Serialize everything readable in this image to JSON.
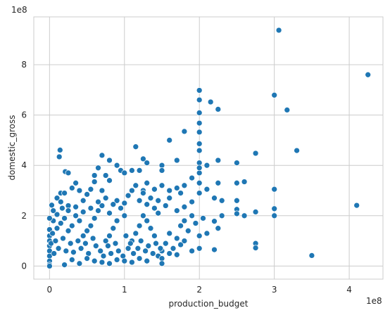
{
  "chart_data": {
    "type": "scatter",
    "title": "",
    "xlabel": "production_budget",
    "ylabel": "domestic_gross",
    "x_exponent_label": "1e8",
    "y_exponent_label": "1e8",
    "xlim": [
      -21000000.0,
      445000000.0
    ],
    "ylim": [
      -52000000.0,
      990000000.0
    ],
    "x_ticks": [
      0,
      100000000.0,
      200000000.0,
      300000000.0,
      400000000.0
    ],
    "x_tick_labels": [
      "0",
      "1",
      "2",
      "3",
      "4"
    ],
    "y_ticks": [
      0,
      200000000.0,
      400000000.0,
      600000000.0,
      800000000.0
    ],
    "y_tick_labels": [
      "0",
      "2",
      "4",
      "6",
      "8"
    ],
    "grid": true,
    "legend": "none",
    "marker_color": "#1f77b4",
    "points": [
      [
        306000000.0,
        937000000.0
      ],
      [
        425000000.0,
        760000000.0
      ],
      [
        200000000.0,
        698000000.0
      ],
      [
        200000000.0,
        660000000.0
      ],
      [
        215000000.0,
        652000000.0
      ],
      [
        225000000.0,
        623000000.0
      ],
      [
        200000000.0,
        609000000.0
      ],
      [
        300000000.0,
        679000000.0
      ],
      [
        317000000.0,
        620000000.0
      ],
      [
        200000000.0,
        568000000.0
      ],
      [
        180000000.0,
        535000000.0
      ],
      [
        200000000.0,
        532000000.0
      ],
      [
        160000000.0,
        500000000.0
      ],
      [
        200000000.0,
        486000000.0
      ],
      [
        115000000.0,
        474000000.0
      ],
      [
        200000000.0,
        459000000.0
      ],
      [
        330000000.0,
        459000000.0
      ],
      [
        275000000.0,
        448000000.0
      ],
      [
        14000000.0,
        461000000.0
      ],
      [
        13000000.0,
        434000000.0
      ],
      [
        70000000.0,
        440000000.0
      ],
      [
        80000000.0,
        420000000.0
      ],
      [
        90000000.0,
        400000000.0
      ],
      [
        125000000.0,
        426000000.0
      ],
      [
        130000000.0,
        410000000.0
      ],
      [
        150000000.0,
        400000000.0
      ],
      [
        170000000.0,
        420000000.0
      ],
      [
        200000000.0,
        410000000.0
      ],
      [
        210000000.0,
        400000000.0
      ],
      [
        225000000.0,
        420000000.0
      ],
      [
        250000000.0,
        410000000.0
      ],
      [
        95000000.0,
        380000000.0
      ],
      [
        100000000.0,
        370000000.0
      ],
      [
        110000000.0,
        380000000.0
      ],
      [
        120000000.0,
        380000000.0
      ],
      [
        150000000.0,
        380000000.0
      ],
      [
        190000000.0,
        350000000.0
      ],
      [
        200000000.0,
        370000000.0
      ],
      [
        200000000.0,
        390000000.0
      ],
      [
        250000000.0,
        330000000.0
      ],
      [
        260000000.0,
        335000000.0
      ],
      [
        225000000.0,
        330000000.0
      ],
      [
        200000000.0,
        330000000.0
      ],
      [
        300000000.0,
        305000000.0
      ],
      [
        21000000.0,
        375000000.0
      ],
      [
        25000000.0,
        370000000.0
      ],
      [
        65000000.0,
        390000000.0
      ],
      [
        60000000.0,
        360000000.0
      ],
      [
        60000000.0,
        335000000.0
      ],
      [
        75000000.0,
        360000000.0
      ],
      [
        80000000.0,
        340000000.0
      ],
      [
        55000000.0,
        305000000.0
      ],
      [
        40000000.0,
        300000000.0
      ],
      [
        30000000.0,
        310000000.0
      ],
      [
        35000000.0,
        330000000.0
      ],
      [
        15000000.0,
        290000000.0
      ],
      [
        20000000.0,
        290000000.0
      ],
      [
        10000000.0,
        270000000.0
      ],
      [
        3000000.0,
        242000000.0
      ],
      [
        15000000.0,
        255000000.0
      ],
      [
        25000000.0,
        240000000.0
      ],
      [
        50000000.0,
        285000000.0
      ],
      [
        45000000.0,
        260000000.0
      ],
      [
        70000000.0,
        300000000.0
      ],
      [
        110000000.0,
        300000000.0
      ],
      [
        115000000.0,
        320000000.0
      ],
      [
        125000000.0,
        300000000.0
      ],
      [
        130000000.0,
        330000000.0
      ],
      [
        140000000.0,
        305000000.0
      ],
      [
        150000000.0,
        320000000.0
      ],
      [
        160000000.0,
        300000000.0
      ],
      [
        170000000.0,
        310000000.0
      ],
      [
        180000000.0,
        320000000.0
      ],
      [
        175000000.0,
        290000000.0
      ],
      [
        160000000.0,
        270000000.0
      ],
      [
        200000000.0,
        290000000.0
      ],
      [
        210000000.0,
        305000000.0
      ],
      [
        220000000.0,
        270000000.0
      ],
      [
        230000000.0,
        260000000.0
      ],
      [
        250000000.0,
        260000000.0
      ],
      [
        250000000.0,
        225000000.0
      ],
      [
        250000000.0,
        208000000.0
      ],
      [
        260000000.0,
        200000000.0
      ],
      [
        275000000.0,
        215000000.0
      ],
      [
        300000000.0,
        228000000.0
      ],
      [
        300000000.0,
        200000000.0
      ],
      [
        410000000.0,
        241000000.0
      ],
      [
        230000000.0,
        200000000.0
      ],
      [
        220000000.0,
        178000000.0
      ],
      [
        225000000.0,
        150000000.0
      ],
      [
        210000000.0,
        130000000.0
      ],
      [
        200000000.0,
        120000000.0
      ],
      [
        200000000.0,
        70000000.0
      ],
      [
        220000000.0,
        65000000.0
      ],
      [
        275000000.0,
        90000000.0
      ],
      [
        275000000.0,
        72000000.0
      ],
      [
        350000000.0,
        42000000.0
      ],
      [
        120000000.0,
        260000000.0
      ],
      [
        100000000.0,
        250000000.0
      ],
      [
        95000000.0,
        230000000.0
      ],
      [
        130000000.0,
        245000000.0
      ],
      [
        145000000.0,
        260000000.0
      ],
      [
        155000000.0,
        240000000.0
      ],
      [
        180000000.0,
        235000000.0
      ],
      [
        190000000.0,
        255000000.0
      ],
      [
        170000000.0,
        220000000.0
      ],
      [
        190000000.0,
        200000000.0
      ],
      [
        180000000.0,
        180000000.0
      ],
      [
        175000000.0,
        160000000.0
      ],
      [
        185000000.0,
        140000000.0
      ],
      [
        195000000.0,
        170000000.0
      ],
      [
        205000000.0,
        190000000.0
      ],
      [
        160000000.0,
        130000000.0
      ],
      [
        170000000.0,
        110000000.0
      ],
      [
        175000000.0,
        85000000.0
      ],
      [
        180000000.0,
        100000000.0
      ],
      [
        190000000.0,
        60000000.0
      ],
      [
        150000000.0,
        60000000.0
      ],
      [
        145000000.0,
        40000000.0
      ],
      [
        155000000.0,
        90000000.0
      ],
      [
        140000000.0,
        120000000.0
      ],
      [
        135000000.0,
        150000000.0
      ],
      [
        130000000.0,
        180000000.0
      ],
      [
        125000000.0,
        200000000.0
      ],
      [
        120000000.0,
        160000000.0
      ],
      [
        115000000.0,
        130000000.0
      ],
      [
        110000000.0,
        100000000.0
      ],
      [
        105000000.0,
        70000000.0
      ],
      [
        100000000.0,
        200000000.0
      ],
      [
        90000000.0,
        180000000.0
      ],
      [
        85000000.0,
        150000000.0
      ],
      [
        80000000.0,
        120000000.0
      ],
      [
        75000000.0,
        100000000.0
      ],
      [
        80000000.0,
        210000000.0
      ],
      [
        70000000.0,
        240000000.0
      ],
      [
        65000000.0,
        220000000.0
      ],
      [
        60000000.0,
        190000000.0
      ],
      [
        55000000.0,
        160000000.0
      ],
      [
        50000000.0,
        140000000.0
      ],
      [
        45000000.0,
        120000000.0
      ],
      [
        40000000.0,
        180000000.0
      ],
      [
        35000000.0,
        200000000.0
      ],
      [
        30000000.0,
        160000000.0
      ],
      [
        25000000.0,
        140000000.0
      ],
      [
        20000000.0,
        190000000.0
      ],
      [
        15000000.0,
        170000000.0
      ],
      [
        10000000.0,
        150000000.0
      ],
      [
        5000000.0,
        180000000.0
      ],
      [
        0,
        190000000.0
      ],
      [
        0,
        145000000.0
      ],
      [
        0,
        120000000.0
      ],
      [
        0,
        100000000.0
      ],
      [
        0,
        80000000.0
      ],
      [
        0,
        60000000.0
      ],
      [
        0,
        40000000.0
      ],
      [
        0,
        20000000.0
      ],
      [
        0,
        5000000.0
      ],
      [
        0,
        0
      ],
      [
        2000000.0,
        90000000.0
      ],
      [
        4000000.0,
        130000000.0
      ],
      [
        6000000.0,
        50000000.0
      ],
      [
        8000000.0,
        100000000.0
      ],
      [
        12000000.0,
        70000000.0
      ],
      [
        18000000.0,
        110000000.0
      ],
      [
        22000000.0,
        60000000.0
      ],
      [
        28000000.0,
        90000000.0
      ],
      [
        32000000.0,
        55000000.0
      ],
      [
        38000000.0,
        100000000.0
      ],
      [
        42000000.0,
        70000000.0
      ],
      [
        48000000.0,
        90000000.0
      ],
      [
        52000000.0,
        50000000.0
      ],
      [
        58000000.0,
        110000000.0
      ],
      [
        62000000.0,
        80000000.0
      ],
      [
        68000000.0,
        60000000.0
      ],
      [
        72000000.0,
        40000000.0
      ],
      [
        78000000.0,
        80000000.0
      ],
      [
        82000000.0,
        50000000.0
      ],
      [
        88000000.0,
        90000000.0
      ],
      [
        92000000.0,
        60000000.0
      ],
      [
        98000000.0,
        40000000.0
      ],
      [
        102000000.0,
        120000000.0
      ],
      [
        108000000.0,
        90000000.0
      ],
      [
        112000000.0,
        50000000.0
      ],
      [
        118000000.0,
        70000000.0
      ],
      [
        122000000.0,
        100000000.0
      ],
      [
        128000000.0,
        60000000.0
      ],
      [
        132000000.0,
        80000000.0
      ],
      [
        138000000.0,
        50000000.0
      ],
      [
        142000000.0,
        90000000.0
      ],
      [
        148000000.0,
        70000000.0
      ],
      [
        150000000.0,
        30000000.0
      ],
      [
        150000000.0,
        10000000.0
      ],
      [
        120000000.0,
        30000000.0
      ],
      [
        100000000.0,
        20000000.0
      ],
      [
        80000000.0,
        10000000.0
      ],
      [
        60000000.0,
        20000000.0
      ],
      [
        40000000.0,
        10000000.0
      ],
      [
        20000000.0,
        5000000.0
      ],
      [
        30000000.0,
        25000000.0
      ],
      [
        50000000.0,
        30000000.0
      ],
      [
        70000000.0,
        15000000.0
      ],
      [
        90000000.0,
        25000000.0
      ],
      [
        110000000.0,
        15000000.0
      ],
      [
        130000000.0,
        20000000.0
      ],
      [
        160000000.0,
        50000000.0
      ],
      [
        165000000.0,
        70000000.0
      ],
      [
        170000000.0,
        45000000.0
      ],
      [
        145000000.0,
        210000000.0
      ],
      [
        140000000.0,
        230000000.0
      ],
      [
        135000000.0,
        270000000.0
      ],
      [
        125000000.0,
        290000000.0
      ],
      [
        105000000.0,
        280000000.0
      ],
      [
        90000000.0,
        260000000.0
      ],
      [
        85000000.0,
        245000000.0
      ],
      [
        75000000.0,
        270000000.0
      ],
      [
        65000000.0,
        255000000.0
      ],
      [
        55000000.0,
        230000000.0
      ],
      [
        45000000.0,
        215000000.0
      ],
      [
        35000000.0,
        235000000.0
      ],
      [
        25000000.0,
        220000000.0
      ],
      [
        17000000.0,
        230000000.0
      ],
      [
        10000000.0,
        205000000.0
      ],
      [
        5000000.0,
        220000000.0
      ]
    ]
  }
}
